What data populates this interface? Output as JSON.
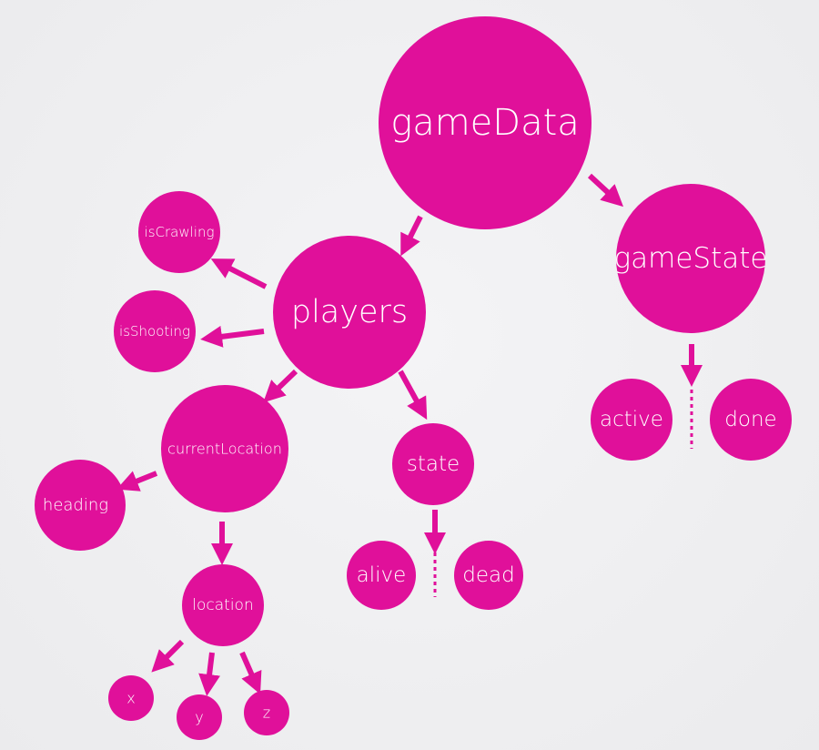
{
  "diagram": {
    "accent_color": "#e0109a",
    "nodes": {
      "gameData": "gameData",
      "gameState": "gameState",
      "players": "players",
      "isCrawling": "isCrawling",
      "isShooting": "isShooting",
      "currentLocation": "currentLocation",
      "state": "state",
      "heading": "heading",
      "location": "location",
      "alive": "alive",
      "dead": "dead",
      "active": "active",
      "done": "done",
      "x": "x",
      "y": "y",
      "z": "z"
    },
    "edges": [
      [
        "gameData",
        "players"
      ],
      [
        "gameData",
        "gameState"
      ],
      [
        "players",
        "isCrawling"
      ],
      [
        "players",
        "isShooting"
      ],
      [
        "players",
        "currentLocation"
      ],
      [
        "players",
        "state"
      ],
      [
        "currentLocation",
        "heading"
      ],
      [
        "currentLocation",
        "location"
      ],
      [
        "state",
        "alive | dead"
      ],
      [
        "gameState",
        "active | done"
      ],
      [
        "location",
        "x"
      ],
      [
        "location",
        "y"
      ],
      [
        "location",
        "z"
      ]
    ]
  }
}
